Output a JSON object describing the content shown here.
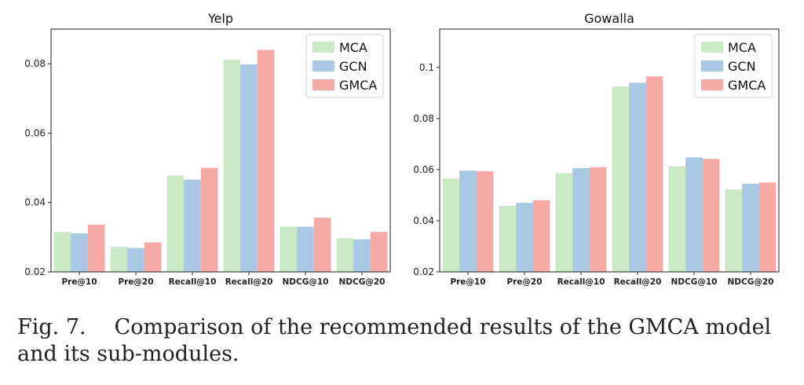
{
  "chart_data": [
    {
      "type": "bar",
      "title": "Yelp",
      "xlabel": "",
      "ylabel": "",
      "categories": [
        "Pre@10",
        "Pre@20",
        "Recall@10",
        "Recall@20",
        "NDCG@10",
        "NDCG@20"
      ],
      "series": [
        {
          "name": "MCA",
          "color": "#c9e8c3",
          "values": [
            0.0315,
            0.0272,
            0.0478,
            0.0812,
            0.0331,
            0.0297
          ]
        },
        {
          "name": "GCN",
          "color": "#a8c8e4",
          "values": [
            0.0311,
            0.0269,
            0.0466,
            0.0798,
            0.033,
            0.0294
          ]
        },
        {
          "name": "GMCA",
          "color": "#f7a9a6",
          "values": [
            0.0336,
            0.0285,
            0.05,
            0.084,
            0.0356,
            0.0315
          ]
        }
      ],
      "ylim": [
        0.02,
        0.09
      ],
      "yticks": [
        0.02,
        0.04,
        0.06,
        0.08
      ],
      "ytick_labels": [
        "0.02",
        "0.04",
        "0.06",
        "0.08"
      ],
      "legend_position": "top-right",
      "grid": false
    },
    {
      "type": "bar",
      "title": "Gowalla",
      "xlabel": "",
      "ylabel": "",
      "categories": [
        "Pre@10",
        "Pre@20",
        "Recall@10",
        "Recall@20",
        "NDCG@10",
        "NDCG@20"
      ],
      "series": [
        {
          "name": "MCA",
          "color": "#c9e8c3",
          "values": [
            0.0565,
            0.0458,
            0.0586,
            0.0925,
            0.0613,
            0.0523
          ]
        },
        {
          "name": "GCN",
          "color": "#a8c8e4",
          "values": [
            0.0596,
            0.047,
            0.0606,
            0.094,
            0.0648,
            0.0545
          ]
        },
        {
          "name": "GMCA",
          "color": "#f7a9a6",
          "values": [
            0.0594,
            0.048,
            0.061,
            0.0965,
            0.0642,
            0.055
          ]
        }
      ],
      "ylim": [
        0.02,
        0.115
      ],
      "yticks": [
        0.02,
        0.04,
        0.06,
        0.08,
        0.1
      ],
      "ytick_labels": [
        "0.02",
        "0.04",
        "0.06",
        "0.08",
        "0.1"
      ],
      "legend_position": "top-right",
      "grid": false
    }
  ],
  "caption": {
    "label": "Fig. 7.",
    "text": "Comparison of the recommended results of the GMCA model and its sub-modules."
  }
}
